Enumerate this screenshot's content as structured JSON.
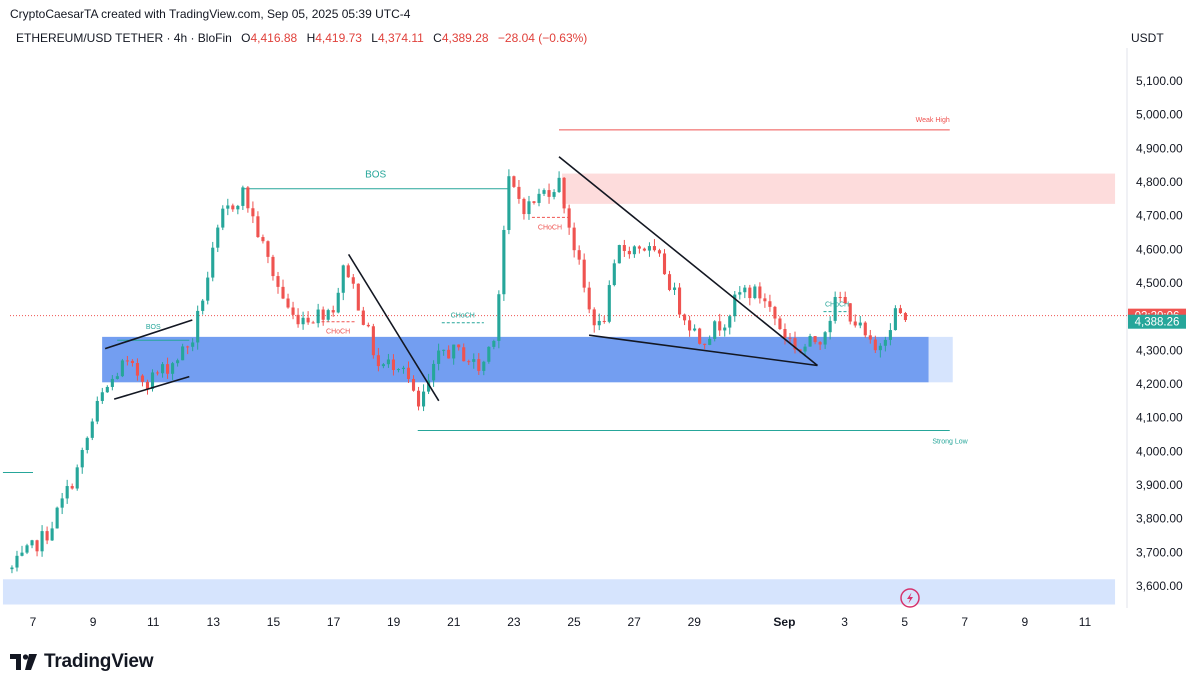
{
  "header": {
    "attribution": "CryptoCaesarTA created with TradingView.com, Sep 05, 2025 05:39 UTC-4",
    "symbol": "ETHEREUM/USD TETHER · 4h · BloFin",
    "open_label": "O",
    "open_value": "4,416.88",
    "high_label": "H",
    "high_value": "4,419.73",
    "low_label": "L",
    "low_value": "4,374.11",
    "close_label": "C",
    "close_value": "4,389.28",
    "change": "−28.04 (−0.63%)",
    "currency": "USDT"
  },
  "footer": {
    "brand": "TradingView"
  },
  "colors": {
    "up": "#26a69a",
    "down": "#ef5350",
    "demand_zone": "#5b8def",
    "light_zone": "#d6e4fd",
    "supply_zone": "#fddcdc"
  },
  "chart_data": {
    "type": "candlestick",
    "interval": "4h",
    "ylim": [
      3540,
      5190
    ],
    "y_ticks": [
      3600,
      3700,
      3800,
      3900,
      4000,
      4100,
      4200,
      4300,
      4400,
      4500,
      4600,
      4700,
      4800,
      4900,
      5000,
      5100
    ],
    "y_tick_labels": [
      "3,600.00",
      "3,700.00",
      "3,800.00",
      "3,900.00",
      "4,000.00",
      "4,100.00",
      "4,200.00",
      "4,300.00",
      "4,400.00",
      "4,500.00",
      "4,600.00",
      "4,700.00",
      "4,800.00",
      "4,900.00",
      "5,000.00",
      "5,100.00"
    ],
    "x_ticks": [
      {
        "day": 7,
        "label": "7"
      },
      {
        "day": 9,
        "label": "9"
      },
      {
        "day": 11,
        "label": "11"
      },
      {
        "day": 13,
        "label": "13"
      },
      {
        "day": 15,
        "label": "15"
      },
      {
        "day": 17,
        "label": "17"
      },
      {
        "day": 19,
        "label": "19"
      },
      {
        "day": 21,
        "label": "21"
      },
      {
        "day": 23,
        "label": "23"
      },
      {
        "day": 25,
        "label": "25"
      },
      {
        "day": 27,
        "label": "27"
      },
      {
        "day": 29,
        "label": "29"
      },
      {
        "day": 32,
        "label": "Sep"
      },
      {
        "day": 34,
        "label": "3"
      },
      {
        "day": 36,
        "label": "5"
      },
      {
        "day": 38,
        "label": "7"
      },
      {
        "day": 40,
        "label": "9"
      },
      {
        "day": 42,
        "label": "11"
      }
    ],
    "price_labels": {
      "countdown": "02:20:06",
      "last_price": "4,388.26",
      "countdown_price": 4403,
      "last_price_value": 4388
    },
    "anchors": [
      {
        "day": 6.3,
        "price": 3650
      },
      {
        "day": 7.5,
        "price": 3760
      },
      {
        "day": 8.5,
        "price": 3950
      },
      {
        "day": 9.2,
        "price": 4150
      },
      {
        "day": 10,
        "price": 4260
      },
      {
        "day": 10.8,
        "price": 4210
      },
      {
        "day": 11.6,
        "price": 4260
      },
      {
        "day": 12.3,
        "price": 4330
      },
      {
        "day": 12.7,
        "price": 4480
      },
      {
        "day": 13.3,
        "price": 4700
      },
      {
        "day": 14,
        "price": 4770
      },
      {
        "day": 14.6,
        "price": 4620
      },
      {
        "day": 15.1,
        "price": 4500
      },
      {
        "day": 15.6,
        "price": 4400
      },
      {
        "day": 16.3,
        "price": 4400
      },
      {
        "day": 17,
        "price": 4430
      },
      {
        "day": 17.4,
        "price": 4560
      },
      {
        "day": 17.9,
        "price": 4420
      },
      {
        "day": 18.5,
        "price": 4250
      },
      {
        "day": 19.3,
        "price": 4270
      },
      {
        "day": 19.8,
        "price": 4120
      },
      {
        "day": 20.6,
        "price": 4300
      },
      {
        "day": 21.3,
        "price": 4290
      },
      {
        "day": 21.9,
        "price": 4240
      },
      {
        "day": 22.4,
        "price": 4370
      },
      {
        "day": 22.8,
        "price": 4800
      },
      {
        "day": 23.4,
        "price": 4720
      },
      {
        "day": 24,
        "price": 4770
      },
      {
        "day": 24.5,
        "price": 4800
      },
      {
        "day": 24.9,
        "price": 4650
      },
      {
        "day": 25.5,
        "price": 4420
      },
      {
        "day": 25.9,
        "price": 4360
      },
      {
        "day": 26.5,
        "price": 4600
      },
      {
        "day": 27.3,
        "price": 4610
      },
      {
        "day": 27.9,
        "price": 4560
      },
      {
        "day": 28.5,
        "price": 4430
      },
      {
        "day": 29.2,
        "price": 4330
      },
      {
        "day": 30,
        "price": 4390
      },
      {
        "day": 30.6,
        "price": 4480
      },
      {
        "day": 31.3,
        "price": 4460
      },
      {
        "day": 31.9,
        "price": 4360
      },
      {
        "day": 32.5,
        "price": 4300
      },
      {
        "day": 33.2,
        "price": 4340
      },
      {
        "day": 33.8,
        "price": 4460
      },
      {
        "day": 34.4,
        "price": 4380
      },
      {
        "day": 35,
        "price": 4290
      },
      {
        "day": 35.7,
        "price": 4415
      },
      {
        "day": 36.1,
        "price": 4390
      }
    ],
    "candle_width_days": 0.167,
    "zones": [
      {
        "type": "demand",
        "day_start": 9.3,
        "day_end": 36.8,
        "top": 4340,
        "bottom": 4205
      },
      {
        "type": "demand-extension",
        "day_start": 36.8,
        "day_end": 37.6,
        "top": 4340,
        "bottom": 4205
      },
      {
        "type": "low-liquidity",
        "day_start": 6.0,
        "day_end": 43.0,
        "top": 3620,
        "bottom": 3545
      },
      {
        "type": "supply",
        "day_start": 24.6,
        "day_end": 43.0,
        "top": 4825,
        "bottom": 4735
      }
    ],
    "levels": [
      {
        "label": "Weak High",
        "price": 4955,
        "day_start": 24.5,
        "day_end": 37.5,
        "color": "#ef5350"
      },
      {
        "label": "Strong Low",
        "price": 4062,
        "day_start": 19.8,
        "day_end": 37.5,
        "color": "#26a69a"
      },
      {
        "label": "BOS",
        "price": 4780,
        "day_start": 14.0,
        "day_end": 22.8,
        "color": "#26a69a"
      },
      {
        "label": "BOS",
        "price": 4330,
        "day_start": 9.8,
        "day_end": 12.2,
        "color": "#26a69a"
      },
      {
        "label": "",
        "price": 3937,
        "day_start": 6.0,
        "day_end": 7.0,
        "color": "#26a69a"
      }
    ],
    "choch_marks": [
      {
        "label": "CHoCH",
        "price": 4385,
        "day_start": 16.6,
        "day_end": 17.7,
        "color": "#ef5350"
      },
      {
        "label": "CHoCH",
        "price": 4382,
        "day_start": 20.6,
        "day_end": 22.0,
        "color": "#26a69a"
      },
      {
        "label": "CHoCH",
        "price": 4695,
        "day_start": 23.6,
        "day_end": 24.8,
        "color": "#ef5350"
      },
      {
        "label": "CHoCH",
        "price": 4415,
        "day_start": 33.3,
        "day_end": 34.2,
        "color": "#26a69a"
      }
    ],
    "drawn_lines": [
      {
        "name": "flag-upper",
        "from": {
          "day": 9.4,
          "price": 4305
        },
        "to": {
          "day": 12.3,
          "price": 4390
        }
      },
      {
        "name": "flag-lower",
        "from": {
          "day": 9.7,
          "price": 4155
        },
        "to": {
          "day": 12.2,
          "price": 4222
        }
      },
      {
        "name": "downtrend",
        "from": {
          "day": 17.5,
          "price": 4585
        },
        "to": {
          "day": 20.5,
          "price": 4150
        }
      },
      {
        "name": "wedge-upper",
        "from": {
          "day": 24.5,
          "price": 4875
        },
        "to": {
          "day": 33.1,
          "price": 4255
        }
      },
      {
        "name": "wedge-lower",
        "from": {
          "day": 25.5,
          "price": 4345
        },
        "to": {
          "day": 33.1,
          "price": 4255
        }
      }
    ]
  }
}
